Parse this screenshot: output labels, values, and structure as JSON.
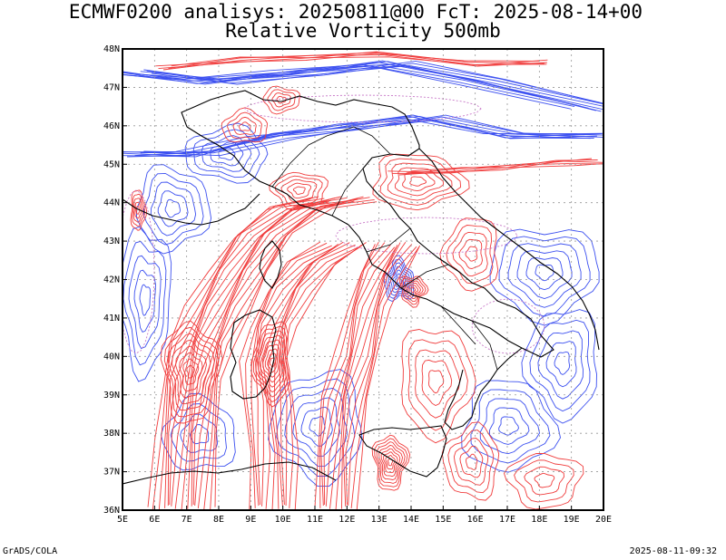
{
  "header": {
    "title_line1": "ECMWF0200 analisys: 20250811@00 FcT: 2025-08-14+00",
    "title_line2": "Relative Vorticity 500mb"
  },
  "footer": {
    "credit": "GrADS/COLA",
    "timestamp": "2025-08-11-09:32"
  },
  "map": {
    "lon_range": [
      5,
      20
    ],
    "lat_range": [
      36,
      48
    ],
    "lon_ticks": [
      "5E",
      "6E",
      "7E",
      "8E",
      "9E",
      "10E",
      "11E",
      "12E",
      "13E",
      "14E",
      "15E",
      "16E",
      "17E",
      "18E",
      "19E",
      "20E"
    ],
    "lat_ticks": [
      "36N",
      "37N",
      "38N",
      "39N",
      "40N",
      "41N",
      "42N",
      "43N",
      "44N",
      "45N",
      "46N",
      "47N",
      "48N"
    ],
    "colors": {
      "positive_contour": "#f03c3c",
      "negative_contour": "#3c50f0",
      "zero_contour": "#c878c8",
      "coastline": "#000000",
      "grid": "#969696"
    }
  }
}
